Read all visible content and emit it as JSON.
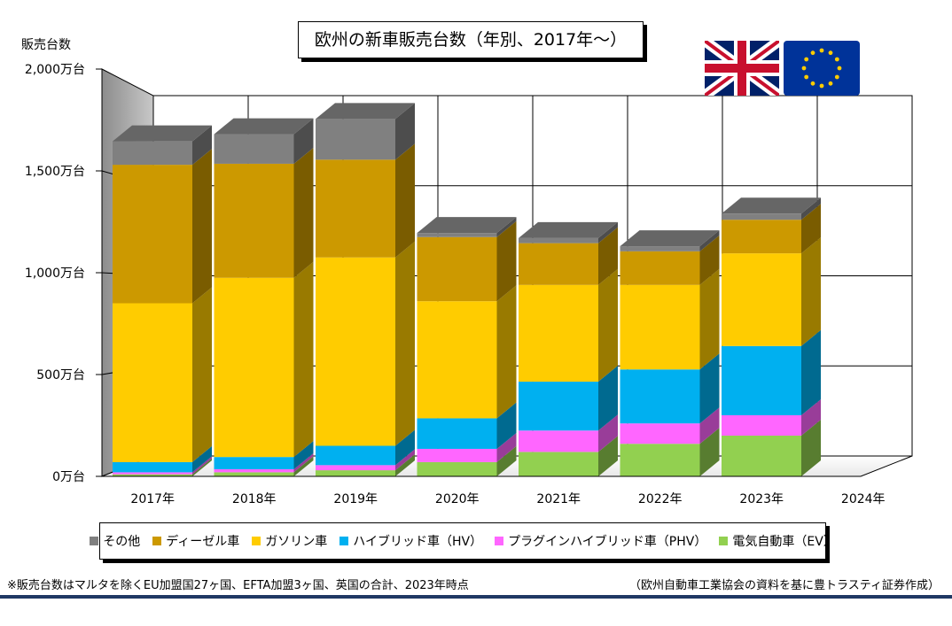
{
  "chart_data": {
    "type": "bar",
    "stacked": true,
    "title": "欧州の新車販売台数（年別、2017年～）",
    "ylabel": "販売台数",
    "categories": [
      "2017年",
      "2018年",
      "2019年",
      "2020年",
      "2021年",
      "2022年",
      "2023年",
      "2024年"
    ],
    "y_ticks": [
      "0万台",
      "500万台",
      "1,000万台",
      "1,500万台",
      "2,000万台"
    ],
    "ylim": [
      0,
      2000
    ],
    "grid": true,
    "legend_position": "bottom",
    "series": [
      {
        "name": "電気自動車（EV）",
        "color": "#92d050",
        "values": [
          10,
          20,
          30,
          70,
          120,
          160,
          200,
          null
        ]
      },
      {
        "name": "プラグインハイブリッド車（PHV）",
        "color": "#ff66ff",
        "values": [
          10,
          15,
          25,
          65,
          105,
          100,
          100,
          null
        ]
      },
      {
        "name": "ハイブリッド車（HV）",
        "color": "#00b0f0",
        "values": [
          50,
          60,
          95,
          150,
          240,
          265,
          340,
          null
        ]
      },
      {
        "name": "ガソリン車",
        "color": "#ffcc00",
        "values": [
          780,
          880,
          925,
          575,
          475,
          415,
          455,
          null
        ]
      },
      {
        "name": "ディーゼル車",
        "color": "#cc9900",
        "values": [
          680,
          560,
          480,
          315,
          205,
          165,
          165,
          null
        ]
      },
      {
        "name": "その他",
        "color": "#808080",
        "values": [
          115,
          145,
          200,
          20,
          25,
          25,
          30,
          null
        ]
      }
    ]
  },
  "notes": {
    "left": "※販売台数はマルタを除くEU加盟国27ヶ国、EFTA加盟3ヶ国、英国の合計、2023年時点",
    "right": "（欧州自動車工業協会の資料を基に豊トラスティ証券作成）"
  },
  "flags": [
    "uk-flag-icon",
    "eu-flag-icon"
  ]
}
